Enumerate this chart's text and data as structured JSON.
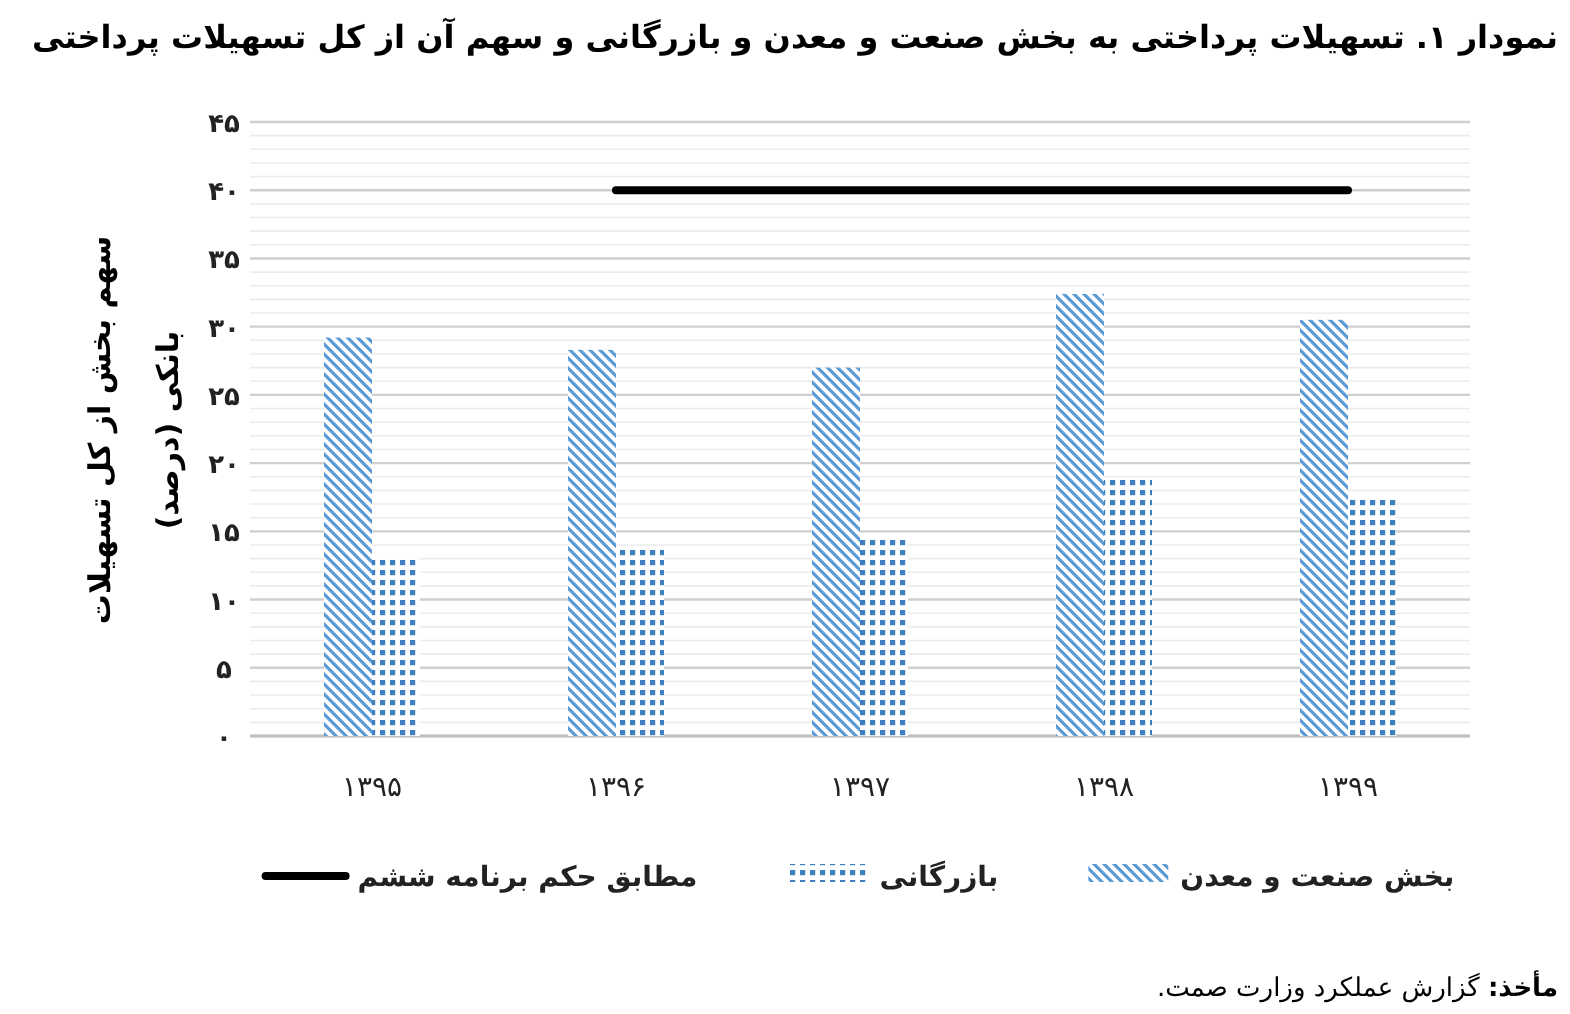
{
  "chart_data": {
    "type": "bar",
    "title": "نمودار ۱. تسهیلات پرداختی به بخش صنعت و معدن و بازرگانی و سهم آن از کل تسهیلات پرداختی",
    "ylabel": "سهم بخش از کل تسهیلات بانکی (درصد)",
    "categories": [
      "۱۳۹۵",
      "۱۳۹۶",
      "۱۳۹۷",
      "۱۳۹۸",
      "۱۳۹۹"
    ],
    "series": [
      {
        "name": "بخش صنعت و معدن",
        "color": "#5b9bd5",
        "values": [
          29.2,
          28.3,
          27.0,
          32.4,
          30.5
        ]
      },
      {
        "name": "بازرگانی",
        "color": "#3f7fc0",
        "values": [
          13.1,
          13.8,
          14.5,
          18.9,
          17.3
        ]
      },
      {
        "name": "مطابق حکم برنامه ششم",
        "type": "line",
        "color": "#000000",
        "values": [
          null,
          40,
          40,
          40,
          40
        ]
      }
    ],
    "ylim": [
      0,
      45
    ],
    "yticks": [
      {
        "value": 0,
        "label": "۰"
      },
      {
        "value": 1,
        "label": null
      },
      {
        "value": 2,
        "label": null
      },
      {
        "value": 3,
        "label": null
      },
      {
        "value": 4,
        "label": null
      },
      {
        "value": 5,
        "label": "۵"
      },
      {
        "value": 6,
        "label": null
      },
      {
        "value": 7,
        "label": null
      },
      {
        "value": 8,
        "label": null
      },
      {
        "value": 9,
        "label": null
      },
      {
        "value": 10,
        "label": "۱۰"
      },
      {
        "value": 11,
        "label": null
      },
      {
        "value": 12,
        "label": null
      },
      {
        "value": 13,
        "label": null
      },
      {
        "value": 14,
        "label": null
      },
      {
        "value": 15,
        "label": "۱۵"
      },
      {
        "value": 16,
        "label": null
      },
      {
        "value": 17,
        "label": null
      },
      {
        "value": 18,
        "label": null
      },
      {
        "value": 19,
        "label": null
      },
      {
        "value": 20,
        "label": "۲۰"
      },
      {
        "value": 21,
        "label": null
      },
      {
        "value": 22,
        "label": null
      },
      {
        "value": 23,
        "label": null
      },
      {
        "value": 24,
        "label": null
      },
      {
        "value": 25,
        "label": "۲۵"
      },
      {
        "value": 26,
        "label": null
      },
      {
        "value": 27,
        "label": null
      },
      {
        "value": 28,
        "label": null
      },
      {
        "value": 29,
        "label": null
      },
      {
        "value": 30,
        "label": "۳۰"
      },
      {
        "value": 31,
        "label": null
      },
      {
        "value": 32,
        "label": null
      },
      {
        "value": 33,
        "label": null
      },
      {
        "value": 34,
        "label": null
      },
      {
        "value": 35,
        "label": "۳۵"
      },
      {
        "value": 36,
        "label": null
      },
      {
        "value": 37,
        "label": null
      },
      {
        "value": 38,
        "label": null
      },
      {
        "value": 39,
        "label": null
      },
      {
        "value": 40,
        "label": "۴۰"
      },
      {
        "value": 41,
        "label": null
      },
      {
        "value": 42,
        "label": null
      },
      {
        "value": 43,
        "label": null
      },
      {
        "value": 44,
        "label": null
      },
      {
        "value": 45,
        "label": "۴۵"
      }
    ],
    "grid": true,
    "legend": "bottom",
    "annotations": [
      "**مأخذ:** گزارش عملکرد وزارت صمت."
    ]
  }
}
